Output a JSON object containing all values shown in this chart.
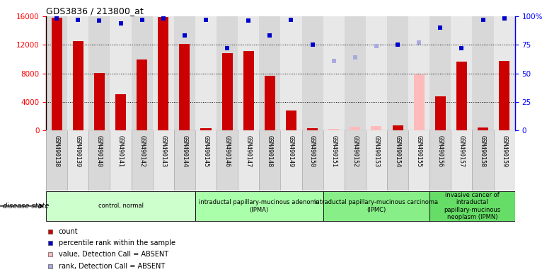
{
  "title": "GDS3836 / 213800_at",
  "samples": [
    "GSM490138",
    "GSM490139",
    "GSM490140",
    "GSM490141",
    "GSM490142",
    "GSM490143",
    "GSM490144",
    "GSM490145",
    "GSM490146",
    "GSM490147",
    "GSM490148",
    "GSM490149",
    "GSM490150",
    "GSM490151",
    "GSM490152",
    "GSM490153",
    "GSM490154",
    "GSM490155",
    "GSM490156",
    "GSM490157",
    "GSM490158",
    "GSM490159"
  ],
  "counts": [
    15800,
    12500,
    8100,
    5100,
    10000,
    15900,
    12100,
    300,
    10800,
    11100,
    7700,
    2800,
    300,
    200,
    500,
    600,
    700,
    7900,
    4800,
    9700,
    400,
    9800
  ],
  "percentile_ranks": [
    98,
    97,
    96,
    94,
    97,
    98,
    83,
    97,
    72,
    96,
    83,
    97,
    75,
    61,
    64,
    74,
    75,
    77,
    90,
    72,
    97,
    98
  ],
  "absent_value_indices": [
    13,
    14,
    15,
    17
  ],
  "absent_rank_indices": [
    13,
    14,
    15,
    17
  ],
  "ylim_left": [
    0,
    16000
  ],
  "ylim_right": [
    0,
    100
  ],
  "yticks_left": [
    0,
    4000,
    8000,
    12000,
    16000
  ],
  "yticks_right": [
    0,
    25,
    50,
    75,
    100
  ],
  "ytick_labels_right": [
    "0",
    "25",
    "50",
    "75",
    "100%"
  ],
  "bar_color": "#cc0000",
  "dot_color": "#0000cc",
  "absent_bar_color": "#ffbbbb",
  "absent_dot_color": "#aaaadd",
  "col_bg_even": "#d8d8d8",
  "col_bg_odd": "#e8e8e8",
  "groups": [
    {
      "label": "control, normal",
      "start": 0,
      "end": 7,
      "color": "#ccffcc"
    },
    {
      "label": "intraductal papillary-mucinous adenoma\n(IPMA)",
      "start": 7,
      "end": 13,
      "color": "#aaffaa"
    },
    {
      "label": "intraductal papillary-mucinous carcinoma\n(IPMC)",
      "start": 13,
      "end": 18,
      "color": "#88ee88"
    },
    {
      "label": "invasive cancer of\nintraductal\npapillary-mucinous\nneoplasm (IPMN)",
      "start": 18,
      "end": 22,
      "color": "#66dd66"
    }
  ],
  "disease_state_label": "disease state",
  "legend_items": [
    {
      "color": "#cc0000",
      "label": "count"
    },
    {
      "color": "#0000cc",
      "label": "percentile rank within the sample"
    },
    {
      "color": "#ffbbbb",
      "label": "value, Detection Call = ABSENT"
    },
    {
      "color": "#aaaadd",
      "label": "rank, Detection Call = ABSENT"
    }
  ]
}
